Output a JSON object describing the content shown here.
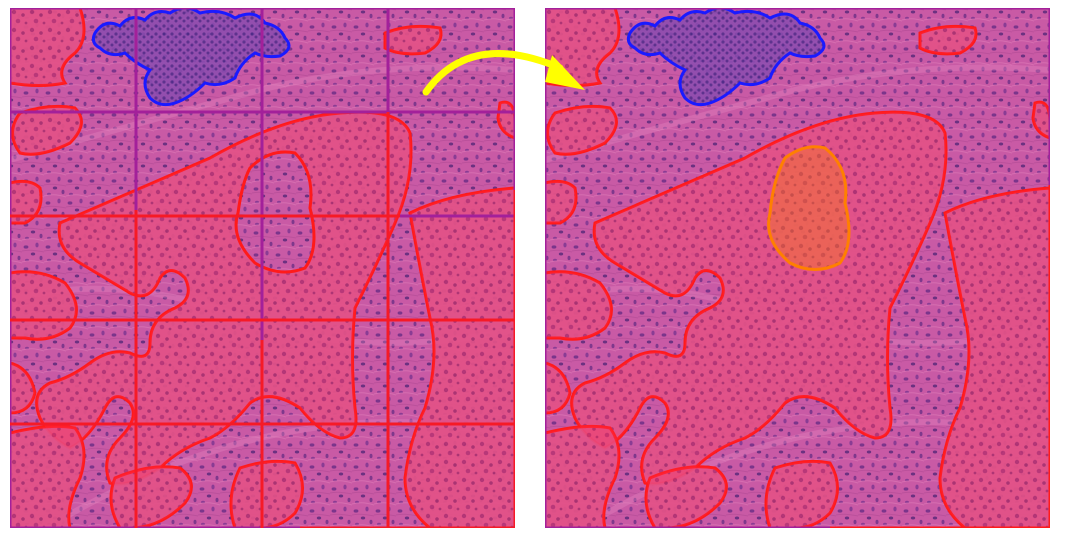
{
  "figure": {
    "description_labels": [],
    "panels": [
      {
        "id": "left",
        "grid": {
          "rows": 5,
          "cols": 4,
          "line_color": "#a3209a"
        },
        "annotations": [
          {
            "name": "tumor-region",
            "color": "#ff1a1a"
          },
          {
            "name": "lymphocyte-region",
            "color": "#1a1aff"
          }
        ]
      },
      {
        "id": "right",
        "grid": null,
        "annotations": [
          {
            "name": "tumor-region",
            "color": "#ff1a1a"
          },
          {
            "name": "lymphocyte-region",
            "color": "#1a1aff"
          },
          {
            "name": "orange-region",
            "color": "#ff8000"
          }
        ]
      }
    ],
    "arrow_color": "#ffff00",
    "tissue_base": "#c9559f",
    "tissue_tumor_tint": "#d83a6a",
    "nuclei_color": "#5b2a7a"
  }
}
